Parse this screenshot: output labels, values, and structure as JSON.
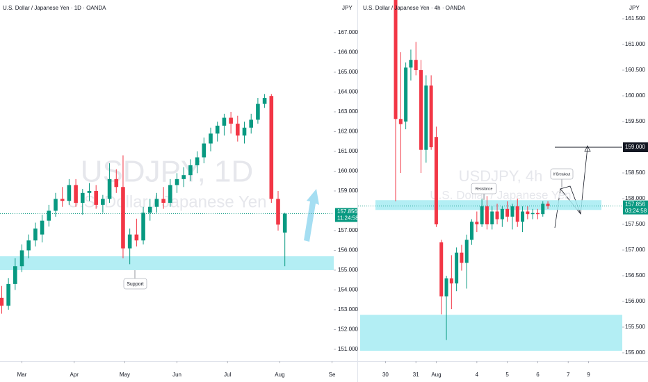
{
  "chart_data": [
    {
      "type": "candlestick",
      "title": "U.S. Dollar / Japanese Yen · 1D · OANDA",
      "watermark": "USDJPY, 1D",
      "watermark_subtitle": "U.S. Dollar / Japanese Yen",
      "currency": "JPY",
      "x": [
        -12,
        -8,
        -4,
        0,
        4,
        8,
        12,
        16,
        20,
        24,
        28,
        32,
        36,
        40,
        44,
        48,
        52,
        56,
        60,
        64,
        68,
        72,
        76,
        80,
        84,
        88,
        92,
        96,
        100,
        104,
        108,
        112,
        116,
        120,
        124,
        128,
        132,
        136,
        140,
        144,
        148,
        152,
        156
      ],
      "open": [
        153.6,
        153.2,
        154.3,
        155.2,
        156.0,
        156.5,
        156.8,
        157.5,
        158.0,
        158.6,
        158.5,
        159.3,
        158.4,
        158.9,
        159.0,
        158.3,
        158.6,
        159.6,
        159.2,
        156.1,
        156.8,
        156.5,
        157.9,
        158.2,
        158.6,
        158.4,
        159.3,
        159.6,
        159.8,
        160.3,
        160.7,
        161.4,
        161.9,
        162.3,
        162.7,
        162.4,
        161.8,
        162.2,
        162.6,
        163.4,
        163.8,
        158.6,
        156.9
      ],
      "high": [
        154.2,
        154.6,
        155.6,
        156.3,
        156.8,
        157.4,
        157.8,
        158.3,
        158.9,
        159.2,
        159.6,
        159.6,
        159.1,
        159.4,
        159.3,
        158.8,
        160.4,
        160.1,
        160.8,
        157.1,
        157.6,
        158.2,
        158.6,
        158.9,
        159.2,
        159.6,
        159.9,
        160.2,
        160.6,
        161.0,
        161.7,
        162.2,
        162.5,
        162.9,
        163.0,
        162.8,
        162.5,
        162.9,
        163.7,
        163.9,
        163.9,
        159.0,
        157.9
      ],
      "low": [
        152.8,
        153.0,
        154.0,
        154.9,
        155.6,
        156.2,
        156.4,
        157.2,
        157.7,
        158.2,
        158.3,
        158.2,
        157.8,
        158.5,
        158.1,
        157.9,
        158.4,
        158.9,
        155.6,
        155.3,
        156.2,
        156.3,
        157.5,
        157.9,
        158.1,
        158.2,
        158.9,
        159.2,
        159.5,
        159.9,
        160.4,
        161.0,
        161.5,
        161.8,
        161.9,
        161.5,
        161.4,
        161.9,
        162.4,
        163.2,
        158.4,
        157.0,
        155.2
      ],
      "close": [
        153.2,
        154.3,
        155.2,
        156.0,
        156.5,
        157.1,
        157.5,
        158.0,
        158.6,
        158.5,
        159.3,
        158.4,
        158.9,
        159.0,
        158.3,
        158.6,
        159.6,
        159.2,
        156.1,
        156.8,
        156.5,
        157.9,
        158.2,
        158.6,
        158.4,
        159.3,
        159.6,
        159.8,
        160.3,
        160.7,
        161.4,
        161.9,
        162.3,
        162.7,
        162.4,
        161.8,
        162.2,
        162.6,
        163.4,
        163.7,
        158.6,
        157.3,
        157.856
      ],
      "up_color": "#089981",
      "down_color": "#f23645",
      "xlim": [
        -13,
        185
      ],
      "xticks": [
        {
          "value": 0,
          "label": "Mar"
        },
        {
          "value": 31,
          "label": "Apr"
        },
        {
          "value": 61,
          "label": "May"
        },
        {
          "value": 92,
          "label": "Jun"
        },
        {
          "value": 122,
          "label": "Jul"
        },
        {
          "value": 153,
          "label": "Aug"
        },
        {
          "value": 184,
          "label": "Se"
        }
      ],
      "ylim": [
        150.4,
        168.65
      ],
      "yticks": [
        {
          "value": 151,
          "label": "151.000"
        },
        {
          "value": 152,
          "label": "152.000"
        },
        {
          "value": 153,
          "label": "153.000"
        },
        {
          "value": 154,
          "label": "154.000"
        },
        {
          "value": 155,
          "label": "155.000"
        },
        {
          "value": 156,
          "label": "156.000"
        },
        {
          "value": 157,
          "label": "157.000"
        },
        {
          "value": 159,
          "label": "159.000"
        },
        {
          "value": 160,
          "label": "160.000"
        },
        {
          "value": 161,
          "label": "161.000"
        },
        {
          "value": 162,
          "label": "162.000"
        },
        {
          "value": 163,
          "label": "163.000"
        },
        {
          "value": 164,
          "label": "164.000"
        },
        {
          "value": 165,
          "label": "165.000"
        },
        {
          "value": 166,
          "label": "166.000"
        },
        {
          "value": 167,
          "label": "167.000"
        }
      ],
      "last_price": 157.856,
      "countdown": "11:24:58",
      "zones": [
        {
          "range": [
            155.0,
            155.7
          ],
          "color": "#a6ebf2"
        }
      ],
      "annotations": [
        "Support"
      ]
    },
    {
      "type": "candlestick",
      "title": "U.S. Dollar / Japanese Yen · 4h · OANDA",
      "watermark": "USDJPY, 4h",
      "watermark_subtitle": "U.S. Dollar / Japanese Yen",
      "currency": "JPY",
      "x": [
        0,
        1,
        2,
        3,
        4,
        5,
        6,
        7,
        8,
        9,
        10,
        11,
        12,
        13,
        14,
        15,
        16,
        17,
        18,
        19,
        20,
        21,
        22,
        23,
        24,
        25,
        26,
        27,
        28,
        29,
        30
      ],
      "open": [
        162.2,
        159.55,
        159.5,
        160.55,
        160.7,
        160.5,
        158.95,
        160.2,
        159.2,
        157.15,
        156.1,
        156.45,
        156.35,
        156.95,
        156.75,
        157.2,
        157.55,
        157.5,
        157.85,
        157.5,
        157.75,
        157.6,
        157.8,
        157.65,
        157.85,
        157.55,
        157.75,
        157.7,
        157.72,
        157.7,
        157.9
      ],
      "high": [
        162.4,
        160.85,
        160.65,
        160.9,
        161.05,
        160.7,
        160.4,
        160.4,
        159.4,
        157.2,
        156.5,
        156.9,
        157.05,
        157.1,
        157.3,
        157.6,
        157.75,
        158.0,
        158.05,
        157.85,
        157.9,
        157.85,
        157.95,
        157.9,
        158.0,
        157.85,
        157.85,
        157.8,
        157.8,
        157.95,
        157.95
      ],
      "low": [
        157.95,
        158.5,
        159.35,
        160.3,
        160.4,
        158.5,
        158.7,
        158.95,
        157.45,
        155.75,
        155.25,
        155.85,
        156.2,
        156.6,
        156.25,
        157.1,
        157.35,
        157.45,
        157.4,
        157.4,
        157.5,
        157.45,
        157.55,
        157.4,
        157.45,
        157.35,
        157.6,
        157.6,
        157.6,
        157.65,
        157.8
      ],
      "close": [
        159.55,
        159.45,
        160.55,
        160.7,
        160.5,
        158.95,
        160.2,
        159.0,
        157.5,
        156.1,
        156.45,
        156.35,
        156.95,
        156.75,
        157.2,
        157.55,
        157.5,
        157.85,
        157.5,
        157.75,
        157.6,
        157.8,
        157.65,
        157.85,
        157.55,
        157.75,
        157.7,
        157.72,
        157.7,
        157.9,
        157.856
      ],
      "up_color": "#089981",
      "down_color": "#f23645",
      "xlim": [
        -7.4,
        44.65
      ],
      "xticks": [
        {
          "value": -2,
          "label": "30"
        },
        {
          "value": 4,
          "label": "31"
        },
        {
          "value": 8,
          "label": "Aug"
        },
        {
          "value": 16,
          "label": "4"
        },
        {
          "value": 22,
          "label": "5"
        },
        {
          "value": 28,
          "label": "6"
        },
        {
          "value": 34,
          "label": "7"
        },
        {
          "value": 38,
          "label": "9"
        }
      ],
      "ylim": [
        154.838,
        161.865
      ],
      "yticks": [
        {
          "value": 155,
          "label": "155.000"
        },
        {
          "value": 155.5,
          "label": "155.500"
        },
        {
          "value": 156,
          "label": "156.000"
        },
        {
          "value": 156.5,
          "label": "156.500"
        },
        {
          "value": 157,
          "label": "157.000"
        },
        {
          "value": 157.5,
          "label": "157.500"
        },
        {
          "value": 158,
          "label": "158.000"
        },
        {
          "value": 158.5,
          "label": "158.500"
        },
        {
          "value": 159.5,
          "label": "159.500"
        },
        {
          "value": 160,
          "label": "160.000"
        },
        {
          "value": 160.5,
          "label": "160.500"
        },
        {
          "value": 161,
          "label": "161.000"
        },
        {
          "value": 161.5,
          "label": "161.500"
        }
      ],
      "last_price": 157.856,
      "countdown": "03:24:58",
      "zones": [
        {
          "range": [
            157.78,
            157.97
          ],
          "color": "#a6ebf2"
        },
        {
          "range": [
            155.04,
            155.74
          ],
          "color": "#a6ebf2"
        }
      ],
      "target": {
        "value": 159,
        "label": "159.000"
      },
      "annotations": [
        "Resistance",
        "If Breakout"
      ]
    }
  ]
}
